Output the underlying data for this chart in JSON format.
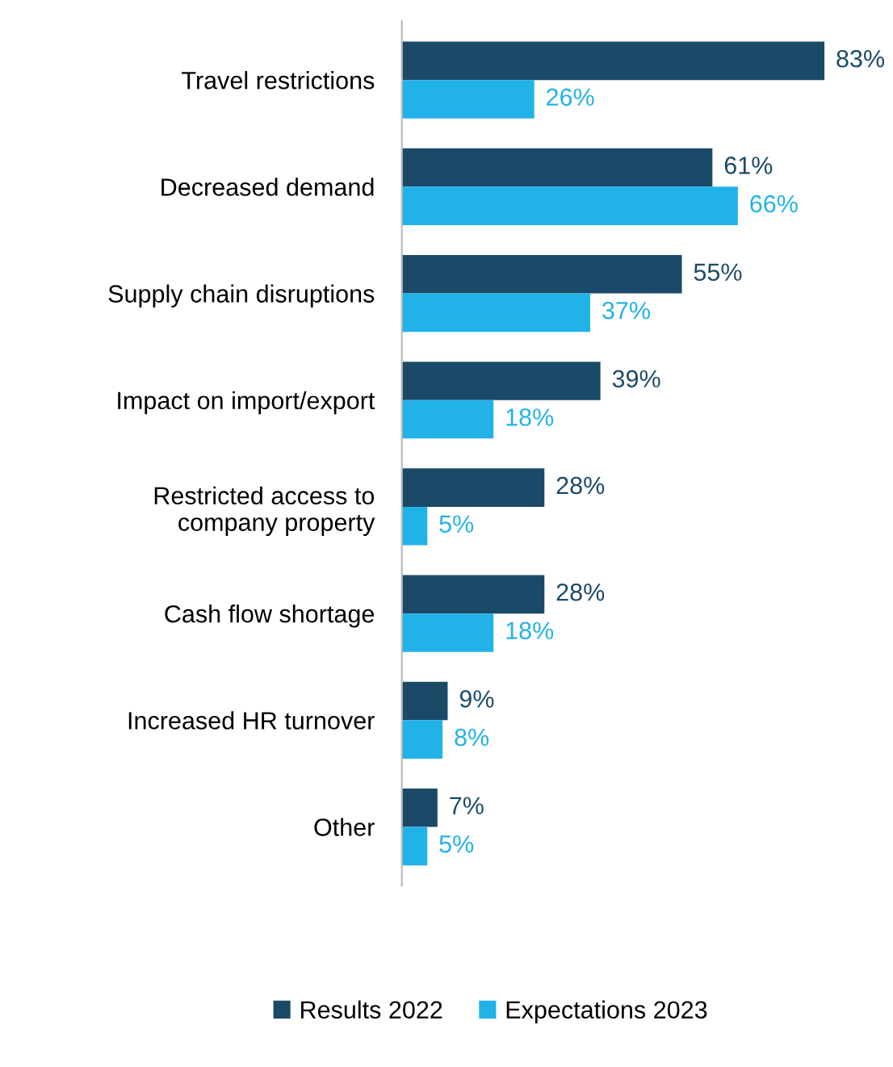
{
  "chart_data": {
    "type": "bar",
    "orientation": "horizontal",
    "categories": [
      "Travel restrictions",
      "Decreased demand",
      "Supply chain disruptions",
      "Impact on import/export",
      "Restricted access to\ncompany property",
      "Cash flow shortage",
      "Increased HR turnover",
      "Other"
    ],
    "series": [
      {
        "name": "Results 2022",
        "color": "#1b4a68",
        "values": [
          83,
          61,
          55,
          39,
          28,
          28,
          9,
          7
        ],
        "value_labels": [
          "83%",
          "61%",
          "55%",
          "39%",
          "28%",
          "28%",
          "9%",
          "7%"
        ]
      },
      {
        "name": "Expectations 2023",
        "color": "#21b2e8",
        "values": [
          26,
          66,
          37,
          18,
          5,
          18,
          8,
          5
        ],
        "value_labels": [
          "26%",
          "66%",
          "37%",
          "18%",
          "5%",
          "18%",
          "8%",
          "5%"
        ]
      }
    ],
    "tick_labels": "y",
    "legend": "bottom",
    "grid": false
  }
}
